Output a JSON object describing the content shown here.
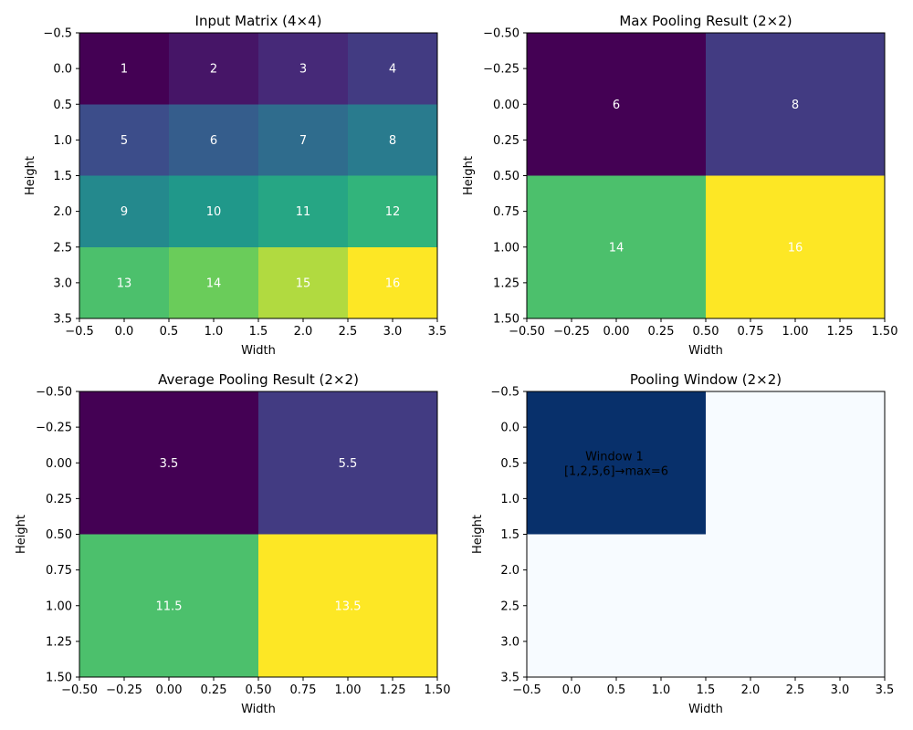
{
  "chart_data": [
    {
      "type": "heatmap",
      "title": "Input Matrix (4×4)",
      "xlabel": "Width",
      "ylabel": "Height",
      "xlim": [
        -0.5,
        3.5
      ],
      "ylim": [
        3.5,
        -0.5
      ],
      "xticks": [
        "−0.5",
        "0.0",
        "0.5",
        "1.0",
        "1.5",
        "2.0",
        "2.5",
        "3.0",
        "3.5"
      ],
      "yticks": [
        "−0.5",
        "0.0",
        "0.5",
        "1.0",
        "1.5",
        "2.0",
        "2.5",
        "3.0",
        "3.5"
      ],
      "values": [
        [
          1,
          2,
          3,
          4
        ],
        [
          5,
          6,
          7,
          8
        ],
        [
          9,
          10,
          11,
          12
        ],
        [
          13,
          14,
          15,
          16
        ]
      ],
      "cell_labels": [
        [
          "1",
          "2",
          "3",
          "4"
        ],
        [
          "5",
          "6",
          "7",
          "8"
        ],
        [
          "9",
          "10",
          "11",
          "12"
        ],
        [
          "13",
          "14",
          "15",
          "16"
        ]
      ],
      "colormap": "viridis",
      "vmin": 1,
      "vmax": 16
    },
    {
      "type": "heatmap",
      "title": "Max Pooling Result (2×2)",
      "xlabel": "Width",
      "ylabel": "Height",
      "xlim": [
        -0.5,
        1.5
      ],
      "ylim": [
        1.5,
        -0.5
      ],
      "xticks": [
        "−0.50",
        "−0.25",
        "0.00",
        "0.25",
        "0.50",
        "0.75",
        "1.00",
        "1.25",
        "1.50"
      ],
      "yticks": [
        "−0.50",
        "−0.25",
        "0.00",
        "0.25",
        "0.50",
        "0.75",
        "1.00",
        "1.25",
        "1.50"
      ],
      "values": [
        [
          6,
          8
        ],
        [
          14,
          16
        ]
      ],
      "cell_labels": [
        [
          "6",
          "8"
        ],
        [
          "14",
          "16"
        ]
      ],
      "colormap": "viridis",
      "vmin": 6,
      "vmax": 16
    },
    {
      "type": "heatmap",
      "title": "Average Pooling Result (2×2)",
      "xlabel": "Width",
      "ylabel": "Height",
      "xlim": [
        -0.5,
        1.5
      ],
      "ylim": [
        1.5,
        -0.5
      ],
      "xticks": [
        "−0.50",
        "−0.25",
        "0.00",
        "0.25",
        "0.50",
        "0.75",
        "1.00",
        "1.25",
        "1.50"
      ],
      "yticks": [
        "−0.50",
        "−0.25",
        "0.00",
        "0.25",
        "0.50",
        "0.75",
        "1.00",
        "1.25",
        "1.50"
      ],
      "values": [
        [
          3.5,
          5.5
        ],
        [
          11.5,
          13.5
        ]
      ],
      "cell_labels": [
        [
          "3.5",
          "5.5"
        ],
        [
          "11.5",
          "13.5"
        ]
      ],
      "colormap": "viridis",
      "vmin": 3.5,
      "vmax": 13.5
    },
    {
      "type": "heatmap",
      "title": "Pooling Window (2×2)",
      "xlabel": "Width",
      "ylabel": "Height",
      "xlim": [
        -0.5,
        3.5
      ],
      "ylim": [
        3.5,
        -0.5
      ],
      "xticks": [
        "−0.5",
        "0.0",
        "0.5",
        "1.0",
        "1.5",
        "2.0",
        "2.5",
        "3.0",
        "3.5"
      ],
      "yticks": [
        "−0.5",
        "0.0",
        "0.5",
        "1.0",
        "1.5",
        "2.0",
        "2.5",
        "3.0",
        "3.5"
      ],
      "values": [
        [
          1,
          1,
          0,
          0
        ],
        [
          1,
          1,
          0,
          0
        ],
        [
          0,
          0,
          0,
          0
        ],
        [
          0,
          0,
          0,
          0
        ]
      ],
      "colormap": "blues",
      "vmin": 0,
      "vmax": 1,
      "annotation": {
        "x": 0.5,
        "y": 0.5,
        "lines": [
          "Window 1",
          "[1,2,5,6]→max=6"
        ]
      }
    }
  ]
}
